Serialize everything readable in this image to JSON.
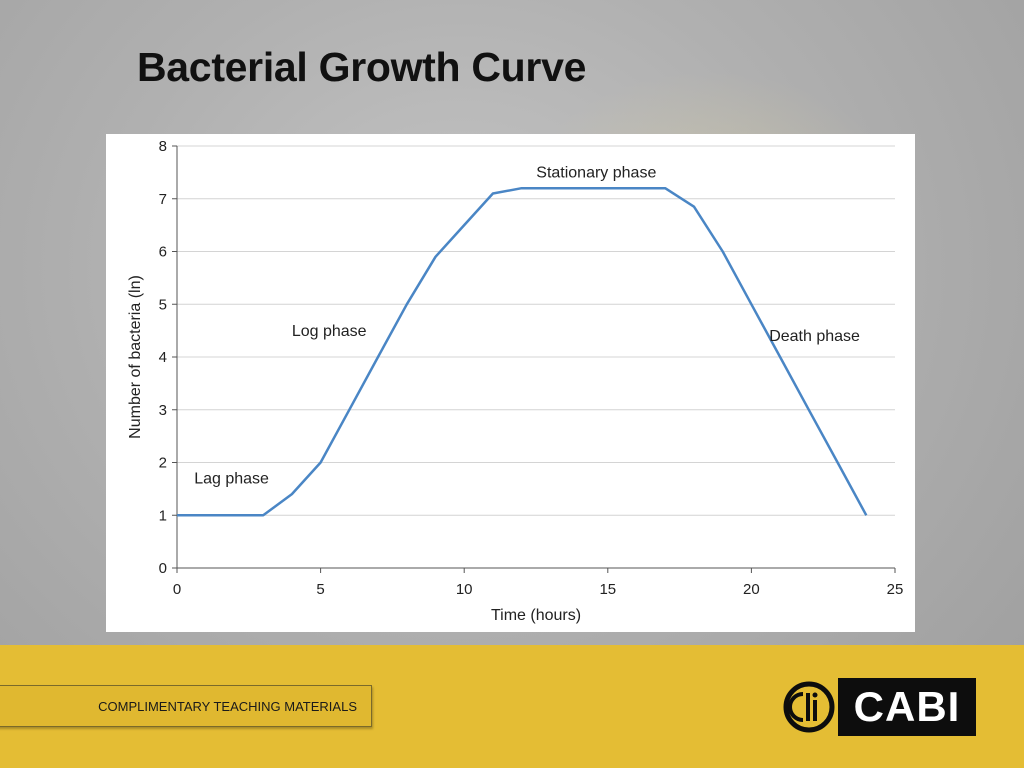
{
  "slide": {
    "title": "Bacterial Growth Curve",
    "footer_label": "COMPLIMENTARY TEACHING MATERIALS",
    "logo_text": "CABI",
    "colors": {
      "footer": "#e4bd34",
      "line": "#4a86c5",
      "logo_bg": "#0d0d0d"
    }
  },
  "chart_data": {
    "type": "line",
    "title": "",
    "xlabel": "Time (hours)",
    "ylabel": "Number of bacteria (ln)",
    "xlim": [
      0,
      25
    ],
    "ylim": [
      0,
      8
    ],
    "xticks": [
      0,
      5,
      10,
      15,
      20,
      25
    ],
    "yticks": [
      0,
      1,
      2,
      3,
      4,
      5,
      6,
      7,
      8
    ],
    "grid": "horizontal",
    "series": [
      {
        "x": [
          0,
          3,
          4,
          5,
          6,
          7,
          8,
          9,
          10,
          11,
          12,
          13,
          14,
          15,
          16,
          17,
          18,
          19,
          20,
          21,
          22,
          23,
          24
        ],
        "values": [
          1,
          1,
          1.4,
          2,
          3,
          4,
          5,
          5.9,
          6.5,
          7.1,
          7.2,
          7.2,
          7.2,
          7.2,
          7.2,
          7.2,
          6.85,
          6,
          5,
          4,
          3,
          2,
          1
        ]
      }
    ],
    "annotations": [
      {
        "text": "Lag phase",
        "x": 1.9,
        "y": 1.6
      },
      {
        "text": "Log phase",
        "x": 5.3,
        "y": 4.4
      },
      {
        "text": "Stationary phase",
        "x": 14.6,
        "y": 7.4
      },
      {
        "text": "Death phase",
        "x": 22.2,
        "y": 4.3
      }
    ]
  }
}
